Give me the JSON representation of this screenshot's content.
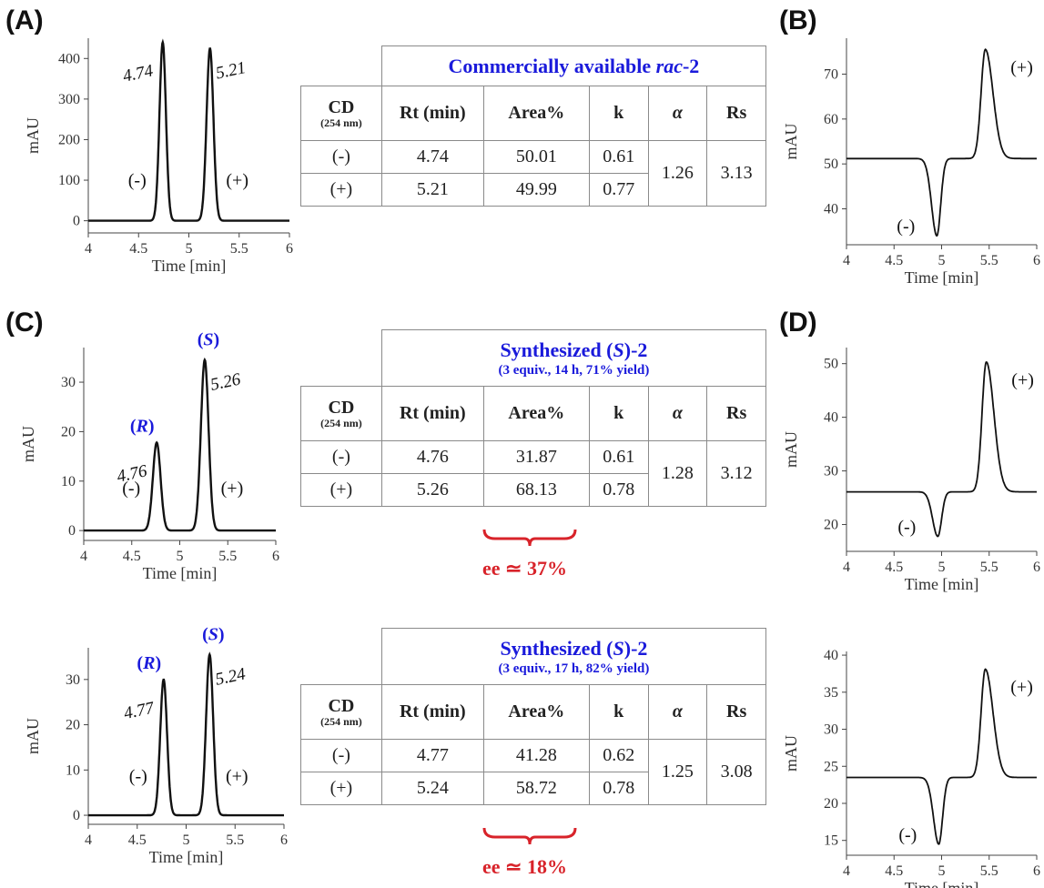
{
  "panels": {
    "A": "(A)",
    "B": "(B)",
    "C": "(C)",
    "D": "(D)"
  },
  "chart_data": [
    {
      "type": "line",
      "panel": "A",
      "xlabel": "Time [min]",
      "ylabel": "mAU",
      "xlim": [
        4,
        6
      ],
      "ylim": [
        -30,
        450
      ],
      "xticks": [
        "4",
        "4.5",
        "5",
        "5.5",
        "6"
      ],
      "yticks": [
        "0",
        "100",
        "200",
        "300",
        "400"
      ],
      "peaks": [
        {
          "rt": 4.74,
          "height": 440,
          "width": 0.032
        },
        {
          "rt": 5.21,
          "height": 425,
          "width": 0.034
        }
      ],
      "rt_labels": [
        "4.74",
        "5.21"
      ],
      "sign_labels": [
        "(-)",
        "(+)"
      ],
      "config_labels": []
    },
    {
      "type": "line",
      "panel": "C",
      "xlabel": "Time [min]",
      "ylabel": "mAU",
      "xlim": [
        4,
        6
      ],
      "ylim": [
        -2,
        37
      ],
      "xticks": [
        "4",
        "4.5",
        "5",
        "5.5",
        "6"
      ],
      "yticks": [
        "0",
        "10",
        "20",
        "30"
      ],
      "peaks": [
        {
          "rt": 4.76,
          "height": 17.8,
          "width": 0.04
        },
        {
          "rt": 5.26,
          "height": 34.5,
          "width": 0.04
        }
      ],
      "rt_labels": [
        "4.76",
        "5.26"
      ],
      "sign_labels": [
        "(-)",
        "(+)"
      ],
      "config_labels": [
        "R",
        "S"
      ]
    },
    {
      "type": "line",
      "panel": "C2",
      "xlabel": "Time [min]",
      "ylabel": "mAU",
      "xlim": [
        4,
        6
      ],
      "ylim": [
        -2,
        37
      ],
      "xticks": [
        "4",
        "4.5",
        "5",
        "5.5",
        "6"
      ],
      "yticks": [
        "0",
        "10",
        "20",
        "30"
      ],
      "peaks": [
        {
          "rt": 4.77,
          "height": 30,
          "width": 0.035
        },
        {
          "rt": 5.24,
          "height": 35.5,
          "width": 0.036
        }
      ],
      "rt_labels": [
        "4.77",
        "5.24"
      ],
      "sign_labels": [
        "(-)",
        "(+)"
      ],
      "config_labels": [
        "R",
        "S"
      ]
    },
    {
      "type": "line",
      "panel": "B",
      "xlabel": "Time [min]",
      "ylabel": "mAU",
      "xlim": [
        4,
        6
      ],
      "ylim": [
        32,
        78
      ],
      "xticks": [
        "4",
        "4.5",
        "5",
        "5.5",
        "6"
      ],
      "yticks": [
        "40",
        "50",
        "60",
        "70"
      ],
      "baseline": 51.2,
      "neg_peak": {
        "t": 4.95,
        "value": 34
      },
      "pos_peak": {
        "t": 5.46,
        "value": 75.5
      },
      "sign_labels": [
        "(-)",
        "(+)"
      ]
    },
    {
      "type": "line",
      "panel": "D",
      "xlabel": "Time [min]",
      "ylabel": "mAU",
      "xlim": [
        4,
        6
      ],
      "ylim": [
        15,
        53
      ],
      "xticks": [
        "4",
        "4.5",
        "5",
        "5.5",
        "6"
      ],
      "yticks": [
        "20",
        "30",
        "40",
        "50"
      ],
      "baseline": 26.1,
      "neg_peak": {
        "t": 4.96,
        "value": 17.8
      },
      "pos_peak": {
        "t": 5.47,
        "value": 50.3
      },
      "sign_labels": [
        "(-)",
        "(+)"
      ]
    },
    {
      "type": "line",
      "panel": "D2",
      "xlabel": "Time [min]",
      "ylabel": "mAU",
      "xlim": [
        4,
        6
      ],
      "ylim": [
        13,
        40.5
      ],
      "xticks": [
        "4",
        "4.5",
        "5",
        "5.5",
        "6"
      ],
      "yticks": [
        "15",
        "20",
        "25",
        "30",
        "35",
        "40"
      ],
      "baseline": 23.5,
      "neg_peak": {
        "t": 4.97,
        "value": 14.5
      },
      "pos_peak": {
        "t": 5.46,
        "value": 38.1
      },
      "sign_labels": [
        "(-)",
        "(+)"
      ]
    },
    {
      "type": "table",
      "caption_pre": "Commercially available ",
      "caption_it": "rac",
      "caption_post": "-2",
      "subcaption": "",
      "headers": {
        "cd": "CD",
        "cd_nm": "(254 nm)",
        "rt": "Rt (min)",
        "area": "Area%",
        "k": "k",
        "alpha": "α",
        "rs": "Rs"
      },
      "rows": [
        {
          "cd": "(-)",
          "rt": "4.74",
          "area": "50.01",
          "k": "0.61"
        },
        {
          "cd": "(+)",
          "rt": "5.21",
          "area": "49.99",
          "k": "0.77"
        }
      ],
      "alpha": "1.26",
      "rs": "3.13",
      "ee": ""
    },
    {
      "type": "table",
      "caption_pre": "Synthesized (",
      "caption_it": "S",
      "caption_post": ")-2",
      "subcaption": "(3 equiv., 14 h, 71% yield)",
      "headers": {
        "cd": "CD",
        "cd_nm": "(254 nm)",
        "rt": "Rt (min)",
        "area": "Area%",
        "k": "k",
        "alpha": "α",
        "rs": "Rs"
      },
      "rows": [
        {
          "cd": "(-)",
          "rt": "4.76",
          "area": "31.87",
          "k": "0.61"
        },
        {
          "cd": "(+)",
          "rt": "5.26",
          "area": "68.13",
          "k": "0.78"
        }
      ],
      "alpha": "1.28",
      "rs": "3.12",
      "ee": "ee ≃ 37%"
    },
    {
      "type": "table",
      "caption_pre": "Synthesized (",
      "caption_it": "S",
      "caption_post": ")-2",
      "subcaption": "(3 equiv., 17 h, 82% yield)",
      "headers": {
        "cd": "CD",
        "cd_nm": "(254 nm)",
        "rt": "Rt (min)",
        "area": "Area%",
        "k": "k",
        "alpha": "α",
        "rs": "Rs"
      },
      "rows": [
        {
          "cd": "(-)",
          "rt": "4.77",
          "area": "41.28",
          "k": "0.62"
        },
        {
          "cd": "(+)",
          "rt": "5.24",
          "area": "58.72",
          "k": "0.78"
        }
      ],
      "alpha": "1.25",
      "rs": "3.08",
      "ee": "ee ≃ 18%"
    }
  ],
  "colors": {
    "trace": "#111111",
    "config": "#1a1adb",
    "ee": "#d8232a",
    "brace": "#d8232a"
  }
}
